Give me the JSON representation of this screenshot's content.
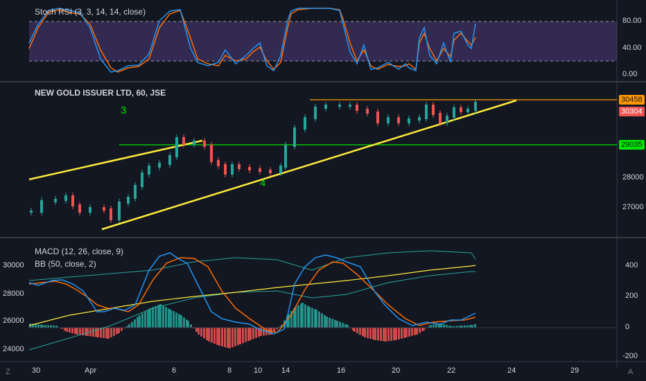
{
  "panes": {
    "stoch": {
      "title": "Stoch RSI (3, 3, 14, 14, close)",
      "ticks": [
        "80.00",
        "40.00",
        "0.00"
      ]
    },
    "price": {
      "title": "NEW GOLD ISSUER LTD, 60, JSE",
      "ticks": [
        "28000",
        "27000"
      ]
    },
    "macd": {
      "title": "MACD (12, 26, close, 9)",
      "bb_title": "BB (50, close, 2)",
      "ticks_right": [
        "400",
        "200",
        "0",
        "-200"
      ],
      "ticks_left": [
        "30000",
        "28000",
        "26000",
        "24000"
      ]
    }
  },
  "annotations": {
    "wave3": "3",
    "wave4": "4"
  },
  "price_tags": {
    "resistance": {
      "text": "30458",
      "color": "#ff9800"
    },
    "last": {
      "text": "30304",
      "color": "#ef5350"
    },
    "support": {
      "text": "29035",
      "color": "#00e600"
    }
  },
  "xaxis": {
    "ticks": [
      "30",
      "Apr",
      "6",
      "8",
      "10",
      "14",
      "16",
      "20",
      "22",
      "24",
      "29"
    ]
  },
  "corner_icons": [
    "Z-icon",
    "A-icon"
  ],
  "chart_data": {
    "type": "line",
    "price_pane": {
      "horizontal_levels": [
        {
          "name": "resistance",
          "value": 30458,
          "color": "#ff9800"
        },
        {
          "name": "support",
          "value": 29035,
          "color": "#00e600"
        }
      ],
      "trendlines_color": "#ffeb3b",
      "candle_colors": {
        "up": "#26a69a",
        "down": "#ef5350"
      }
    },
    "stoch_pane": {
      "ylim": [
        0,
        100
      ],
      "band": [
        20,
        80
      ],
      "k_color": "#2196f3",
      "d_color": "#ff6d00"
    },
    "macd_pane": {
      "macd_color": "#2196f3",
      "signal_color": "#ff6d00",
      "hist_up": "#26a69a",
      "hist_down": "#ef5350",
      "bb_color": "#26a69a",
      "bb_basis": "#ffeb3b"
    }
  }
}
